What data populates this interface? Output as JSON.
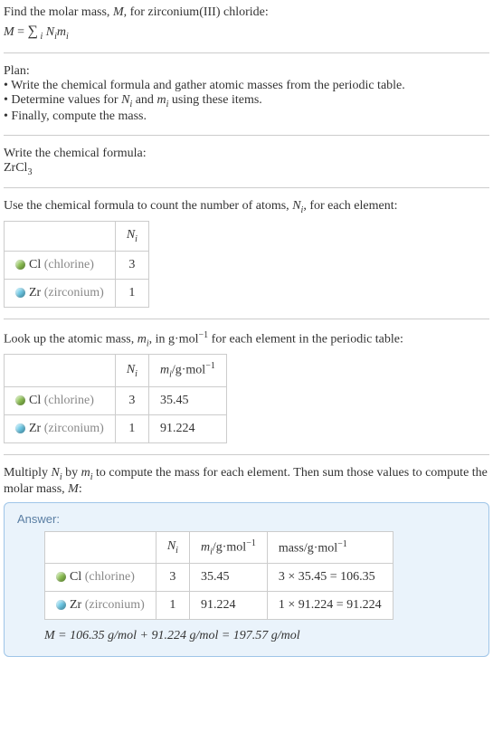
{
  "intro": {
    "line1": "Find the molar mass, M, for zirconium(III) chloride:",
    "formula_html": "M = Σᵢ Nᵢmᵢ"
  },
  "plan": {
    "title": "Plan:",
    "items": [
      "Write the chemical formula and gather atomic masses from the periodic table.",
      "Determine values for Nᵢ and mᵢ using these items.",
      "Finally, compute the mass."
    ]
  },
  "write_formula": {
    "title": "Write the chemical formula:",
    "formula": "ZrCl₃"
  },
  "count_atoms": {
    "text": "Use the chemical formula to count the number of atoms, Nᵢ, for each element:",
    "header_ni": "Nᵢ",
    "rows": [
      {
        "dot_color": "#8abf4f",
        "sym": "Cl",
        "name": "(chlorine)",
        "n": "3"
      },
      {
        "dot_color": "#69c8e6",
        "sym": "Zr",
        "name": "(zirconium)",
        "n": "1"
      }
    ]
  },
  "lookup_mass": {
    "text": "Look up the atomic mass, mᵢ, in g·mol⁻¹ for each element in the periodic table:",
    "header_ni": "Nᵢ",
    "header_mi": "mᵢ/g·mol⁻¹",
    "rows": [
      {
        "dot_color": "#8abf4f",
        "sym": "Cl",
        "name": "(chlorine)",
        "n": "3",
        "m": "35.45"
      },
      {
        "dot_color": "#69c8e6",
        "sym": "Zr",
        "name": "(zirconium)",
        "n": "1",
        "m": "91.224"
      }
    ]
  },
  "multiply": {
    "text": "Multiply Nᵢ by mᵢ to compute the mass for each element. Then sum those values to compute the molar mass, M:"
  },
  "answer": {
    "label": "Answer:",
    "header_ni": "Nᵢ",
    "header_mi": "mᵢ/g·mol⁻¹",
    "header_mass": "mass/g·mol⁻¹",
    "rows": [
      {
        "dot_color": "#8abf4f",
        "sym": "Cl",
        "name": "(chlorine)",
        "n": "3",
        "m": "35.45",
        "calc": "3 × 35.45 = 106.35"
      },
      {
        "dot_color": "#69c8e6",
        "sym": "Zr",
        "name": "(zirconium)",
        "n": "1",
        "m": "91.224",
        "calc": "1 × 91.224 = 91.224"
      }
    ],
    "final": "M = 106.35 g/mol + 91.224 g/mol = 197.57 g/mol"
  },
  "colors": {
    "border": "#cccccc",
    "answer_bg": "#eaf3fb",
    "answer_border": "#9fc5e8",
    "gray_text": "#888888"
  }
}
